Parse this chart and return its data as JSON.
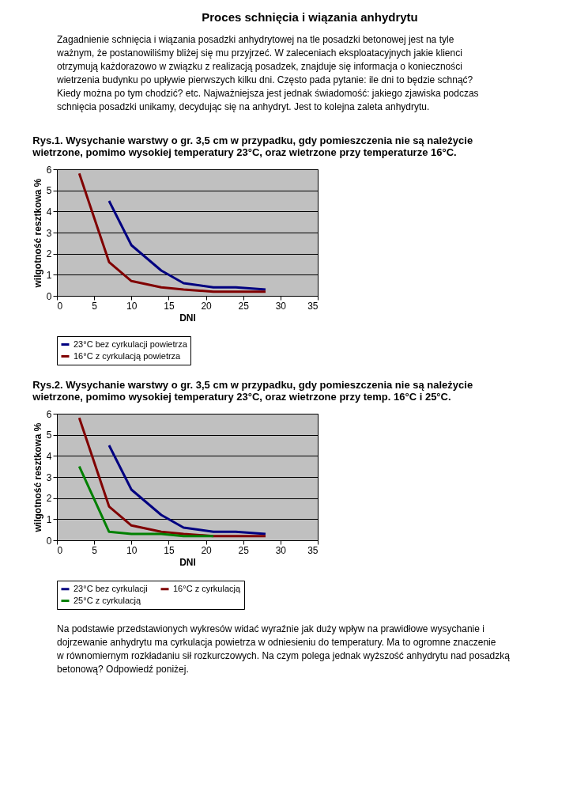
{
  "chart_data": [
    {
      "type": "line",
      "title": [
        "Rys.1. Wysychanie warstwy o gr. 3,5 cm  w przypadku, gdy pomieszczenia nie są należycie",
        "wietrzone, pomimo wysokiej temperatury 23°C,  oraz wietrzone przy temperaturze 16°C."
      ],
      "annotations": [
        "Proces schnięcia i wiązania anhydrytu",
        "Zagadnienie schnięcia i wiązania posadzki anhydrytowej na tle posadzki betonowej jest na tyle ważnym, że postanowiliśmy bliżej się mu przyjrzeć. W zaleceniach eksploatacyjnych jakie klienci otrzymują każdorazowo w związku z realizacją posadzek, znajduje się informacja o konieczności wietrzenia budynku po upływie pierwszych kilku dni. Często pada pytanie: ile dni to będzie schnąć? Kiedy można po tym chodzić? etc. Najważniejsza jest jednak świadomość: jakiego zjawiska podczas schnięcia posadzki unikamy, decydując się na anhydryt. Jest to kolejna zaleta anhydrytu."
      ],
      "xlabel": "DNI",
      "ylabel": "wilgotność resztkowa %",
      "xlim": [
        0,
        35
      ],
      "xticks": [
        0,
        5,
        10,
        15,
        20,
        25,
        30,
        35
      ],
      "ylim": [
        0,
        6
      ],
      "yticks": [
        0,
        1,
        2,
        3,
        4,
        5,
        6
      ],
      "grid": "y",
      "legend": "bottom",
      "series": [
        {
          "name": "23°C bez cyrkulacji powietrza",
          "color": "#000080",
          "x": [
            7,
            10,
            14,
            17,
            21,
            24,
            28
          ],
          "values": [
            4.5,
            2.4,
            1.2,
            0.6,
            0.4,
            0.4,
            0.3
          ]
        },
        {
          "name": "16°C z cyrkulacją powietrza",
          "color": "#800000",
          "x": [
            3,
            7,
            10,
            14,
            17,
            21,
            28
          ],
          "values": [
            5.8,
            1.6,
            0.7,
            0.4,
            0.3,
            0.2,
            0.2
          ]
        }
      ]
    },
    {
      "type": "line",
      "title": [
        "Rys.2. Wysychanie warstwy o gr. 3,5 cm w przypadku,  gdy pomieszczenia nie są należycie",
        "wietrzone, pomimo wysokiej temperatury 23°C, oraz wietrzone przy temp.  16°C i 25°C."
      ],
      "annotations": [
        "Na podstawie przedstawionych wykresów widać wyraźnie jak duży wpływ na prawidłowe wysychanie i dojrzewanie anhydrytu ma cyrkulacja powietrza w odniesieniu do temperatury. Ma to ogromne znaczenie w równomiernym rozkładaniu sił rozkurczowych. Na czym polega jednak wyższość anhydrytu nad posadzką betonową?  Odpowiedź poniżej."
      ],
      "xlabel": "DNI",
      "ylabel": "wilgotność resztkowa %",
      "xlim": [
        0,
        35
      ],
      "xticks": [
        0,
        5,
        10,
        15,
        20,
        25,
        30,
        35
      ],
      "ylim": [
        0,
        6
      ],
      "yticks": [
        0,
        1,
        2,
        3,
        4,
        5,
        6
      ],
      "grid": "y",
      "legend": "bottom",
      "series": [
        {
          "name": "23°C bez cyrkulacji",
          "color": "#000080",
          "x": [
            7,
            10,
            14,
            17,
            21,
            24,
            28
          ],
          "values": [
            4.5,
            2.4,
            1.2,
            0.6,
            0.4,
            0.4,
            0.3
          ]
        },
        {
          "name": "16°C z cyrkulacją",
          "color": "#800000",
          "x": [
            3,
            7,
            10,
            14,
            17,
            21,
            28
          ],
          "values": [
            5.8,
            1.6,
            0.7,
            0.4,
            0.3,
            0.2,
            0.2
          ]
        },
        {
          "name": "25°C z cyrkulacją",
          "color": "#008000",
          "x": [
            3,
            7,
            10,
            14,
            17,
            21
          ],
          "values": [
            3.5,
            0.4,
            0.3,
            0.3,
            0.2,
            0.2
          ]
        }
      ]
    }
  ]
}
